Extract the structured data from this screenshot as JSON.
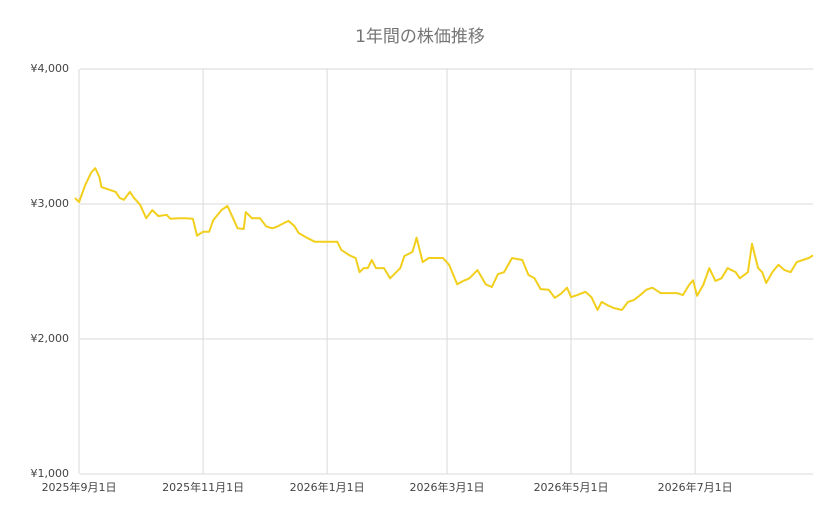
{
  "chart_data": {
    "type": "line",
    "title": "1年間の株価推移",
    "x": [
      "2025-08-30",
      "2025-09-01",
      "2025-09-04",
      "2025-09-07",
      "2025-09-09",
      "2025-09-11",
      "2025-09-12",
      "2025-09-16",
      "2025-09-19",
      "2025-09-21",
      "2025-09-23",
      "2025-09-26",
      "2025-09-28",
      "2025-10-01",
      "2025-10-04",
      "2025-10-07",
      "2025-10-10",
      "2025-10-14",
      "2025-10-16",
      "2025-10-20",
      "2025-10-23",
      "2025-10-27",
      "2025-10-29",
      "2025-11-01",
      "2025-11-04",
      "2025-11-06",
      "2025-11-10",
      "2025-11-13",
      "2025-11-15",
      "2025-11-18",
      "2025-11-21",
      "2025-11-22",
      "2025-11-25",
      "2025-11-29",
      "2025-12-02",
      "2025-12-05",
      "2025-12-07",
      "2025-12-11",
      "2025-12-13",
      "2025-12-16",
      "2025-12-18",
      "2025-12-22",
      "2025-12-26",
      "2025-12-31",
      "2026-01-04",
      "2026-01-06",
      "2026-01-08",
      "2026-01-12",
      "2026-01-15",
      "2026-01-17",
      "2026-01-19",
      "2026-01-21",
      "2026-01-23",
      "2026-01-25",
      "2026-01-29",
      "2026-02-01",
      "2026-02-04",
      "2026-02-06",
      "2026-02-08",
      "2026-02-12",
      "2026-02-14",
      "2026-02-17",
      "2026-02-20",
      "2026-02-24",
      "2026-02-27",
      "2026-03-02",
      "2026-03-06",
      "2026-03-09",
      "2026-03-12",
      "2026-03-16",
      "2026-03-20",
      "2026-03-23",
      "2026-03-26",
      "2026-03-29",
      "2026-04-02",
      "2026-04-07",
      "2026-04-10",
      "2026-04-13",
      "2026-04-16",
      "2026-04-20",
      "2026-04-23",
      "2026-04-26",
      "2026-04-29",
      "2026-05-01",
      "2026-05-04",
      "2026-05-08",
      "2026-05-11",
      "2026-05-14",
      "2026-05-16",
      "2026-05-19",
      "2026-05-22",
      "2026-05-26",
      "2026-05-29",
      "2026-06-01",
      "2026-06-04",
      "2026-06-07",
      "2026-06-10",
      "2026-06-14",
      "2026-06-18",
      "2026-06-22",
      "2026-06-25",
      "2026-06-28",
      "2026-06-30",
      "2026-07-02",
      "2026-07-05",
      "2026-07-08",
      "2026-07-11",
      "2026-07-14",
      "2026-07-17",
      "2026-07-21",
      "2026-07-23",
      "2026-07-27",
      "2026-07-29",
      "2026-08-01",
      "2026-08-03",
      "2026-08-05",
      "2026-08-08",
      "2026-08-11",
      "2026-08-14",
      "2026-08-17",
      "2026-08-20",
      "2026-08-23",
      "2026-08-26",
      "2026-08-28"
    ],
    "series": [
      {
        "color": "#f2cf1d",
        "values": [
          3045,
          3015,
          3140,
          3235,
          3265,
          3200,
          3125,
          3105,
          3090,
          3045,
          3030,
          3090,
          3045,
          2995,
          2895,
          2955,
          2910,
          2920,
          2890,
          2895,
          2895,
          2890,
          2765,
          2795,
          2795,
          2880,
          2955,
          2985,
          2920,
          2820,
          2815,
          2940,
          2895,
          2895,
          2835,
          2820,
          2830,
          2860,
          2875,
          2835,
          2785,
          2750,
          2720,
          2720,
          2720,
          2720,
          2660,
          2620,
          2600,
          2495,
          2525,
          2525,
          2585,
          2525,
          2525,
          2450,
          2495,
          2525,
          2615,
          2645,
          2750,
          2570,
          2600,
          2600,
          2600,
          2550,
          2405,
          2430,
          2450,
          2510,
          2405,
          2385,
          2480,
          2495,
          2600,
          2585,
          2475,
          2450,
          2370,
          2365,
          2305,
          2335,
          2380,
          2310,
          2325,
          2350,
          2310,
          2215,
          2275,
          2250,
          2230,
          2215,
          2275,
          2290,
          2325,
          2365,
          2380,
          2340,
          2340,
          2340,
          2325,
          2400,
          2435,
          2320,
          2400,
          2525,
          2430,
          2450,
          2525,
          2495,
          2450,
          2495,
          2705,
          2525,
          2495,
          2415,
          2495,
          2550,
          2510,
          2495,
          2570,
          2585,
          2600,
          2620
        ]
      }
    ],
    "xlim": [
      "2025-08-30",
      "2026-08-28"
    ],
    "xticks": [
      {
        "value": "2025-09-01",
        "label": "2025年9月1日"
      },
      {
        "value": "2025-11-01",
        "label": "2025年11月1日"
      },
      {
        "value": "2026-01-01",
        "label": "2026年1月1日"
      },
      {
        "value": "2026-03-01",
        "label": "2026年3月1日"
      },
      {
        "value": "2026-05-01",
        "label": "2026年5月1日"
      },
      {
        "value": "2026-07-01",
        "label": "2026年7月1日"
      }
    ],
    "ylim": [
      1000,
      4000
    ],
    "yticks": [
      {
        "value": 1000,
        "label": "¥1,000"
      },
      {
        "value": 2000,
        "label": "¥2,000"
      },
      {
        "value": 3000,
        "label": "¥3,000"
      },
      {
        "value": 4000,
        "label": "¥4,000"
      }
    ],
    "grid": true
  }
}
